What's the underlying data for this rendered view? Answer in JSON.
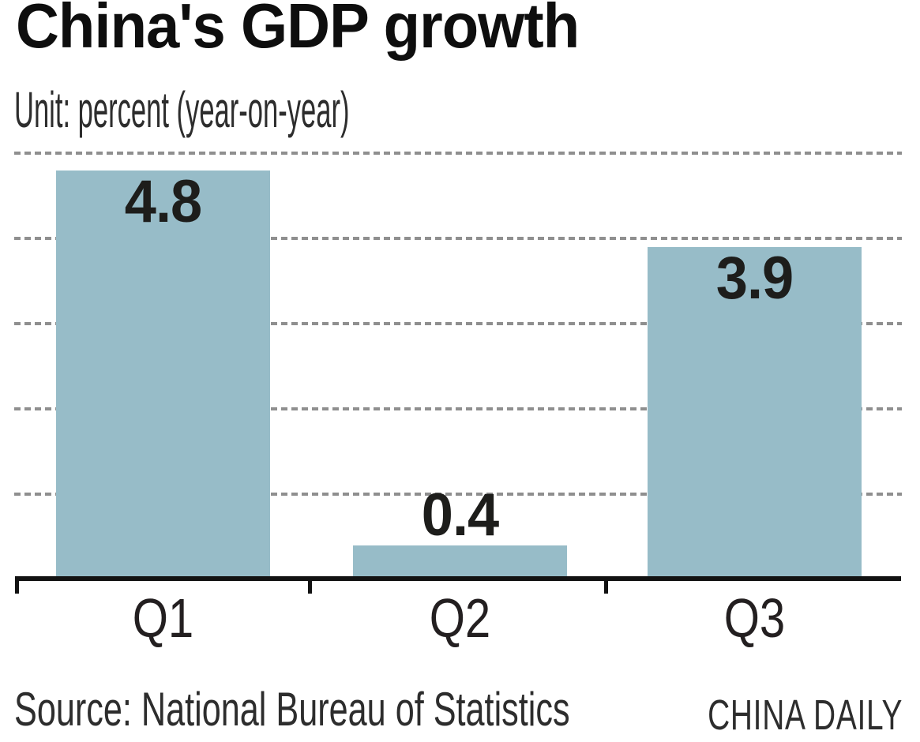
{
  "chart_data": {
    "type": "bar",
    "title": "China's GDP growth",
    "subtitle": "Unit: percent (year-on-year)",
    "categories": [
      "Q1",
      "Q2",
      "Q3"
    ],
    "values": [
      4.8,
      0.4,
      3.9
    ],
    "value_labels": [
      "4.8",
      "0.4",
      "3.9"
    ],
    "label_placement": [
      "inside-top",
      "above",
      "inside-top"
    ],
    "xlabel": "",
    "ylabel": "",
    "ylim": [
      0,
      5
    ],
    "gridlines": [
      1,
      2,
      3,
      4,
      5
    ],
    "grid_style": "dashed",
    "legend": "none",
    "source": "Source: National Bureau of Statistics",
    "credit": "CHINA DAILY"
  },
  "colors": {
    "bar": "#97bcc8",
    "grid": "#8f8f8f",
    "axis": "#121212",
    "title_text": "#0e0e0e",
    "value_text": "#1d1d1b",
    "category_text": "#231f20",
    "muted_text": "#2d2d2d",
    "background": "#ffffff"
  }
}
